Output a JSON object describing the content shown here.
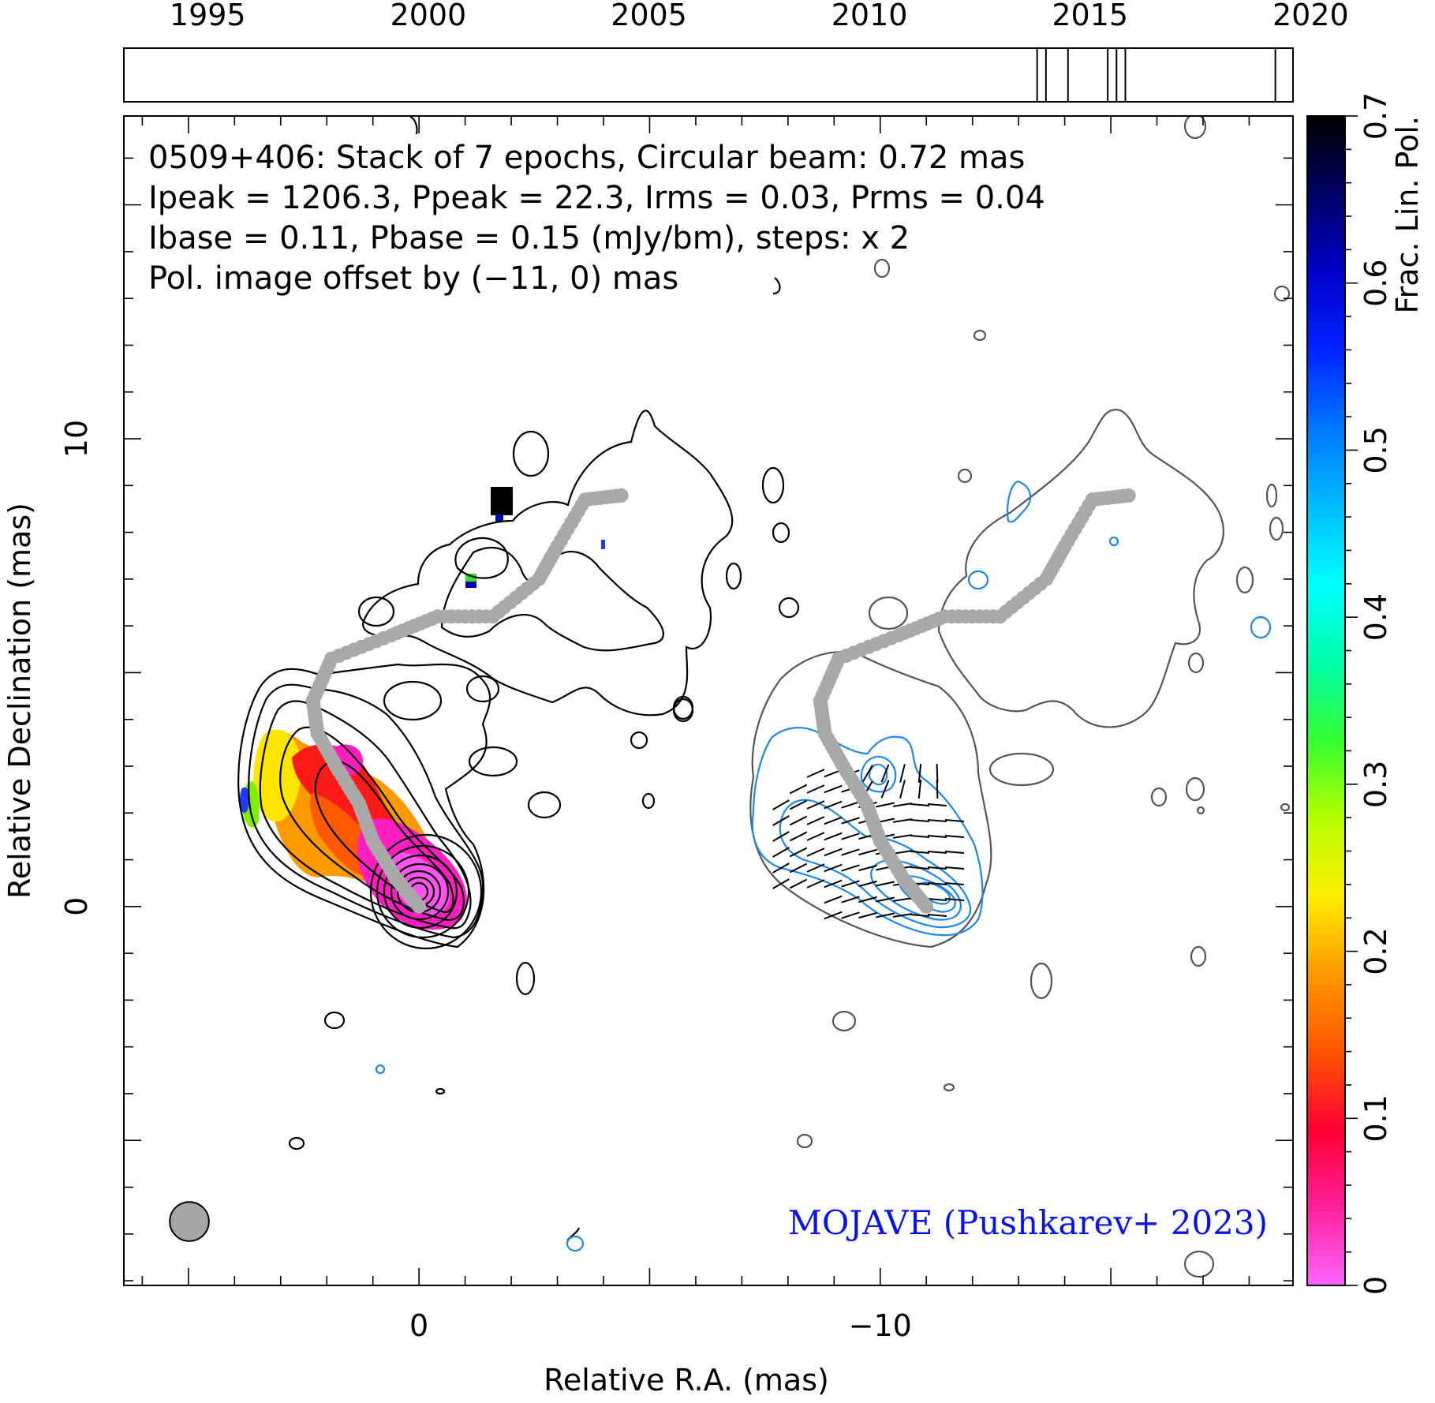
{
  "header": {
    "line1": "0509+406: Stack of 7 epochs, Circular beam: 0.72 mas",
    "line2": "Ipeak = 1206.3, Ppeak = 22.3, Irms = 0.03, Prms = 0.04",
    "line3": "Ibase = 0.11, Pbase = 0.15 (mJy/bm), steps: x 2",
    "line4": "Pol. image offset by (−11, 0) mas",
    "line4_color": "#1e88e5"
  },
  "credit": {
    "text": "MOJAVE (Pushkarev+ 2023)",
    "color": "#0b12e8"
  },
  "timeline": {
    "tick_labels": [
      "1995",
      "2000",
      "2005",
      "2010",
      "2015",
      "2020"
    ],
    "year_range": [
      1993.1,
      2019.6
    ],
    "epochs": [
      2013.8,
      2014.0,
      2014.5,
      2015.4,
      2015.6,
      2015.8,
      2019.2
    ]
  },
  "chart_data": {
    "type": "contour",
    "xlabel": "Relative R.A. (mas)",
    "ylabel": "Relative Declination (mas)",
    "x_tick_labels": [
      {
        "value": 0,
        "text": "0"
      },
      {
        "value": -10,
        "text": "−10"
      }
    ],
    "y_tick_labels": [
      {
        "value": 10,
        "text": "10"
      },
      {
        "value": 0,
        "text": "0"
      }
    ],
    "xlim": [
      6.4,
      -18.95
    ],
    "ylim": [
      -8.1,
      16.9
    ],
    "beam_major_mas": 0.72,
    "beam_color": "#a6a6a6",
    "ridge_line": [
      [
        0,
        0
      ],
      [
        0.5,
        0.6
      ],
      [
        1,
        1.4
      ],
      [
        1.3,
        2.2
      ],
      [
        1.8,
        3
      ],
      [
        2.2,
        3.7
      ],
      [
        2.3,
        4.4
      ],
      [
        1.9,
        5.3
      ],
      [
        0.6,
        5.8
      ],
      [
        -0.4,
        6.2
      ],
      [
        -1.6,
        6.2
      ],
      [
        -2.6,
        7.0
      ],
      [
        -3,
        7.7
      ],
      [
        -3.6,
        8.7
      ],
      [
        -4.5,
        8.8
      ]
    ],
    "pol_offset_mas": [
      -11,
      0
    ],
    "colorbar": {
      "label": "Frac. Lin. Pol.",
      "range": [
        0,
        0.7
      ],
      "tick_labels": [
        "0",
        "0.1",
        "0.2",
        "0.3",
        "0.4",
        "0.5",
        "0.6",
        "0.7"
      ],
      "stops": [
        "#ff66ff",
        "#ff1f9a",
        "#ff0033",
        "#ff5500",
        "#ff9900",
        "#ffee00",
        "#b3ff00",
        "#33ff33",
        "#00ffaa",
        "#00ffff",
        "#00bbff",
        "#0077ff",
        "#0022ff",
        "#0000c8",
        "#000066",
        "#000000"
      ]
    }
  }
}
